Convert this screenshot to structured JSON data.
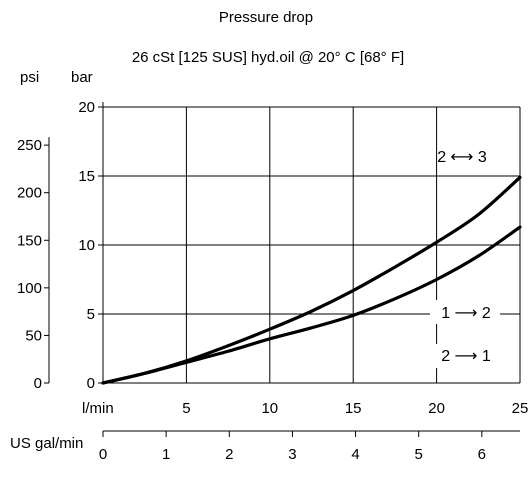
{
  "chart_data": {
    "type": "line",
    "title": "Pressure drop",
    "subtitle": "26 cSt [125 SUS] hyd.oil @ 20° C [68° F]",
    "xlabel": "l/min",
    "xlabel_secondary": "US gal/min",
    "ylabel": "bar",
    "ylabel_secondary": "psi",
    "xlim": [
      0,
      25
    ],
    "ylim": [
      0,
      20
    ],
    "x_ticks": [
      0,
      5,
      10,
      15,
      20,
      25
    ],
    "x_tick_labels": [
      "5",
      "10",
      "15",
      "20",
      "25"
    ],
    "y_ticks": [
      0,
      5,
      10,
      15,
      20
    ],
    "y_tick_labels": [
      "0",
      "5",
      "10",
      "15",
      "20"
    ],
    "psi_ticks": [
      0,
      50,
      100,
      150,
      200,
      250
    ],
    "psi_tick_labels": [
      "0",
      "50",
      "100",
      "150",
      "200",
      "250"
    ],
    "gpm_ticks": [
      0,
      1,
      2,
      3,
      4,
      5,
      6
    ],
    "gpm_tick_labels": [
      "0",
      "1",
      "2",
      "3",
      "4",
      "5",
      "6"
    ],
    "grid": true,
    "series": [
      {
        "name": "2 ⟷ 3",
        "x": [
          0,
          2.5,
          5,
          7.5,
          10,
          12.5,
          15,
          17.5,
          20,
          22.5,
          25
        ],
        "values": [
          0,
          0.7,
          1.6,
          2.7,
          3.9,
          5.2,
          6.7,
          8.4,
          10.2,
          12.2,
          14.9
        ]
      },
      {
        "name": "1 → 2, 2 → 1",
        "x": [
          0,
          2.5,
          5,
          7.5,
          10,
          12.5,
          15,
          17.5,
          20,
          22.5,
          25
        ],
        "values": [
          0,
          0.7,
          1.5,
          2.3,
          3.2,
          4.0,
          4.9,
          6.1,
          7.5,
          9.2,
          11.3
        ]
      }
    ],
    "annotations": [
      "2 ⟷ 3",
      "1 ⟶ 2",
      "2 ⟶ 1"
    ]
  }
}
